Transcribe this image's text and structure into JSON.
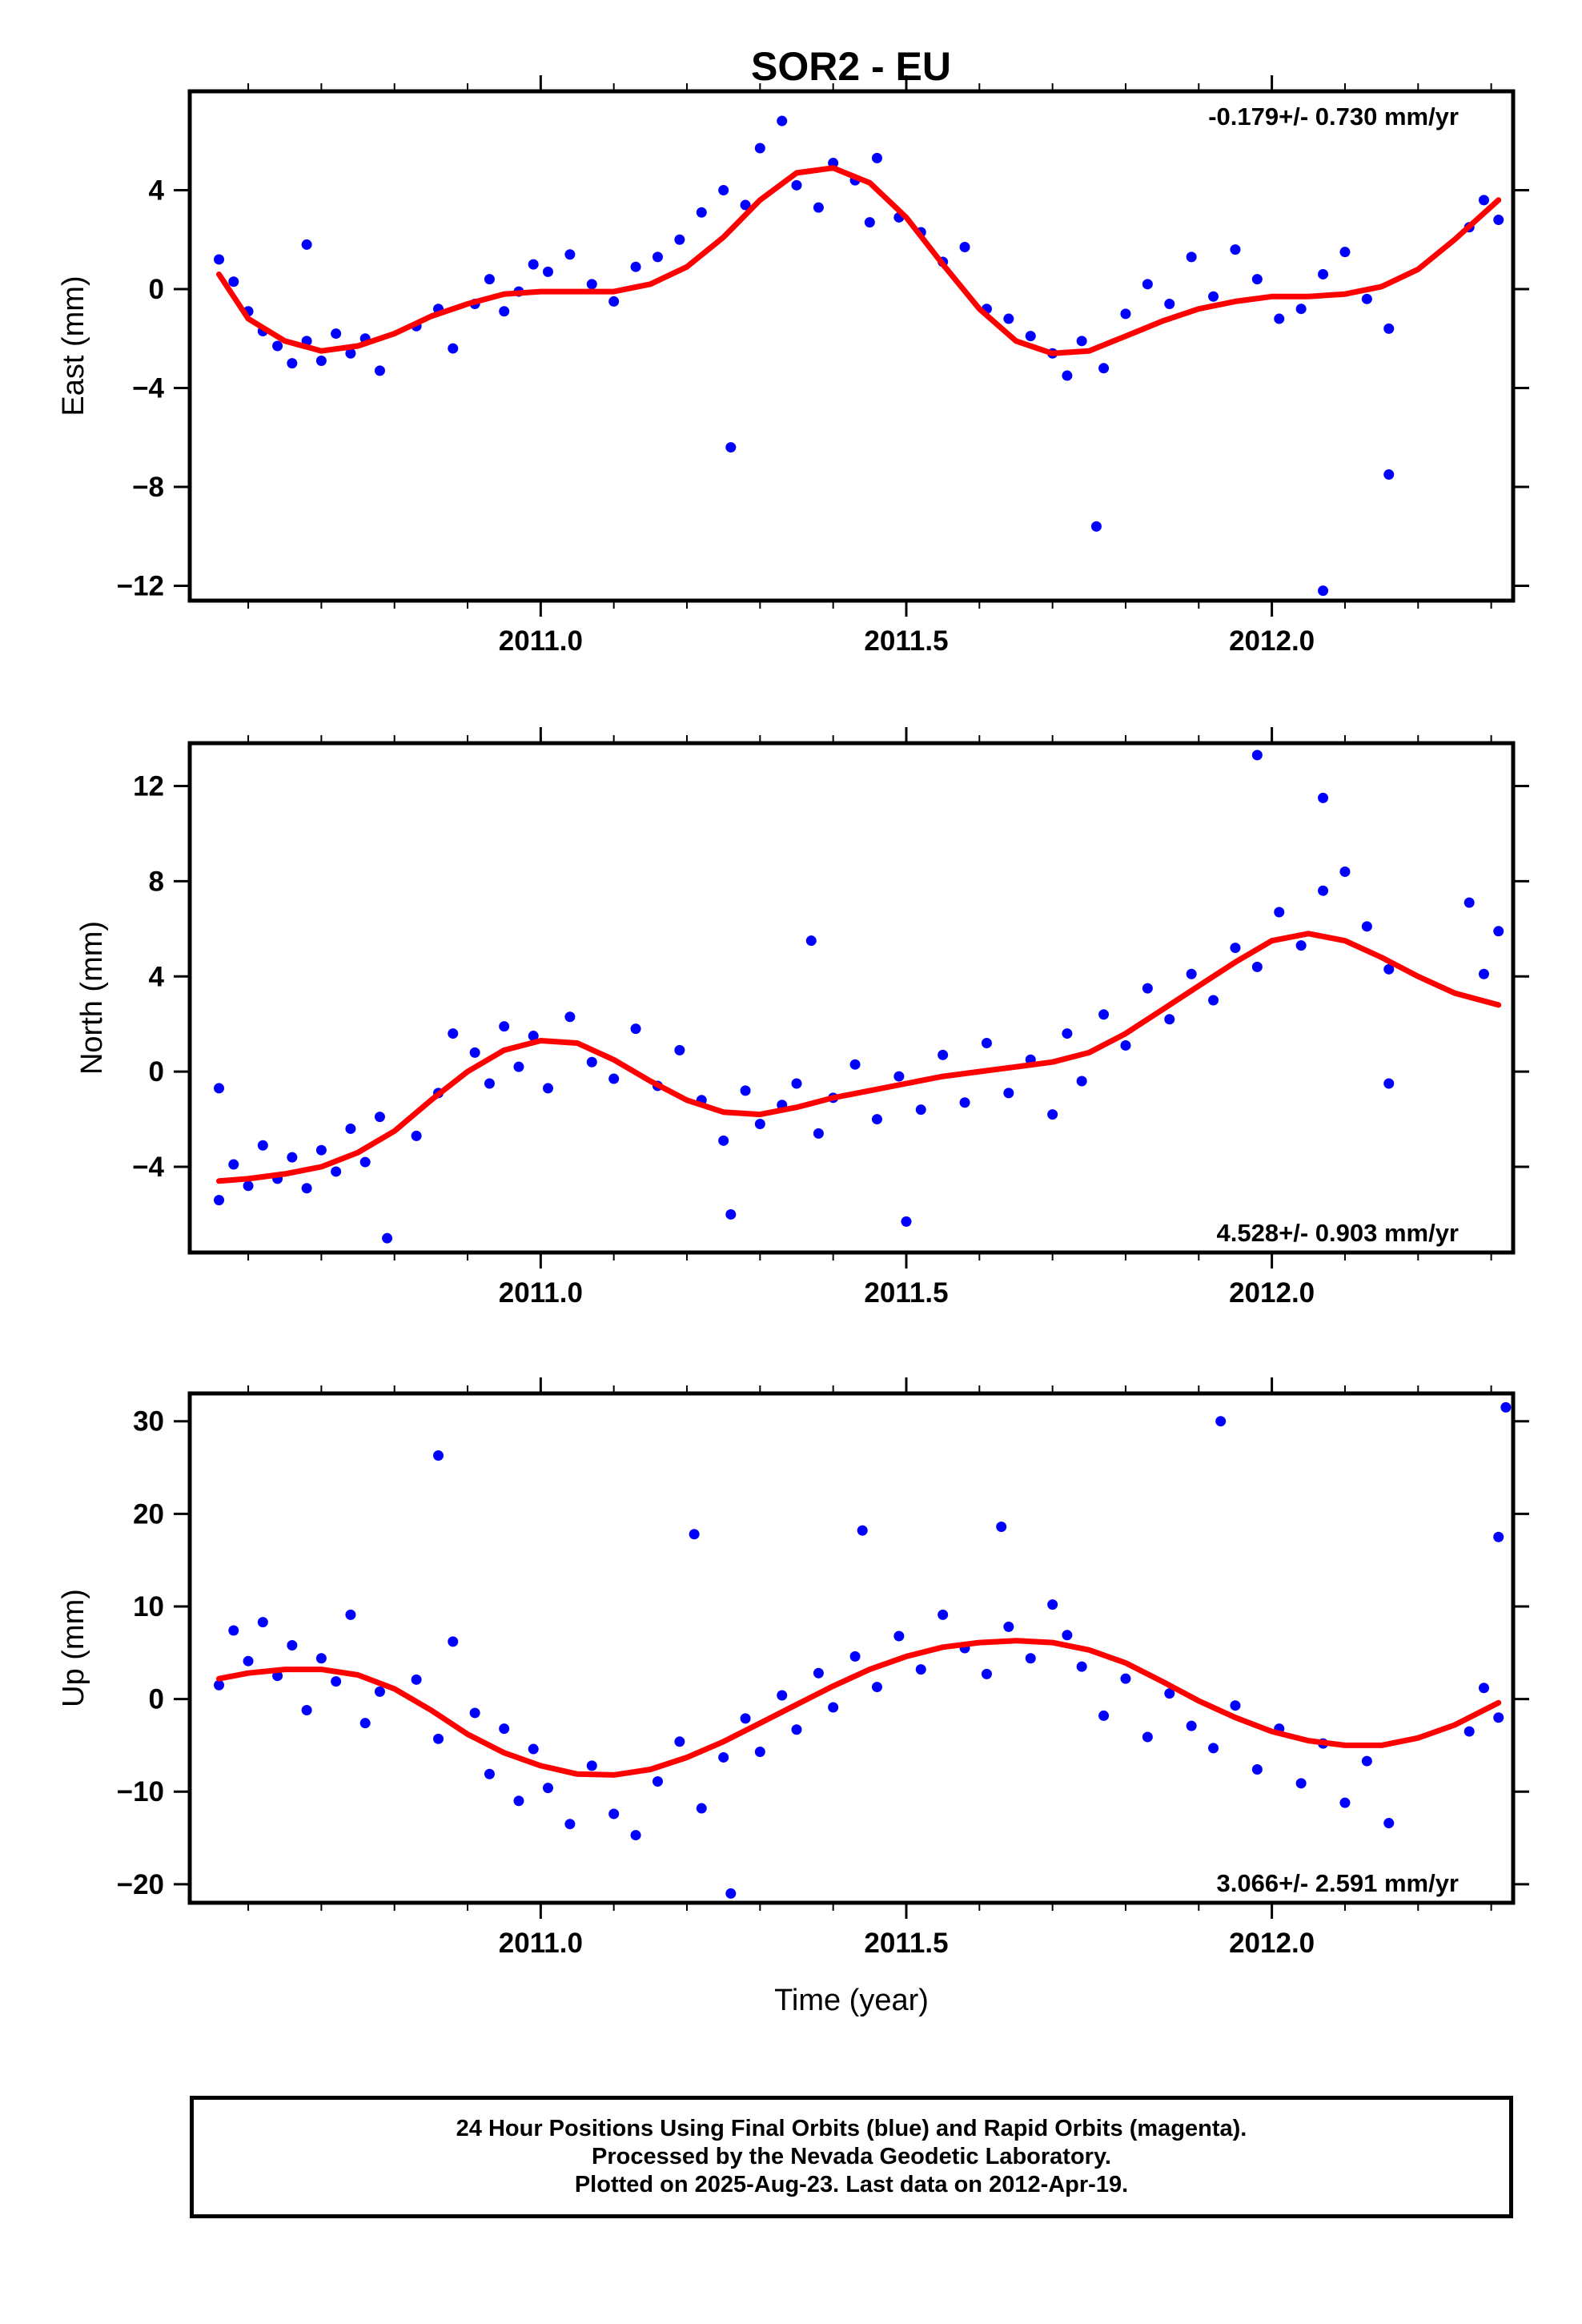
{
  "title": "SOR2 - EU",
  "colors": {
    "data_points": "#0000ff",
    "fit_line": "#ff0000",
    "frame": "#000000"
  },
  "footer": {
    "line1": "24 Hour Positions Using Final Orbits (blue) and Rapid Orbits (magenta).",
    "line2": "Processed by the Nevada Geodetic Laboratory.",
    "line3": "Plotted on 2025-Aug-23. Last data on 2012-Apr-19."
  },
  "chart_data": [
    {
      "type": "scatter",
      "ylabel": "East (mm)",
      "rate_label": "-0.179+/- 0.730 mm/yr",
      "rate_position": "top-right",
      "xlim": [
        2010.52,
        2012.33
      ],
      "ylim": [
        -12.6,
        8.0
      ],
      "yticks": [
        -12,
        -8,
        -4,
        0,
        4
      ],
      "ytick_labels": [
        "−12",
        "−8",
        "−4",
        "0",
        "4"
      ],
      "xticks": [
        2011.0,
        2011.5,
        2012.0
      ],
      "xtick_labels": [
        "2011.0",
        "2011.5",
        "2012.0"
      ],
      "series": [
        {
          "kind": "points",
          "x": [
            2010.56,
            2010.58,
            2010.6,
            2010.62,
            2010.64,
            2010.66,
            2010.68,
            2010.7,
            2010.72,
            2010.74,
            2010.76,
            2010.78,
            2010.83,
            2010.86,
            2010.88,
            2010.91,
            2010.93,
            2010.95,
            2010.97,
            2010.99,
            2011.01,
            2011.04,
            2011.07,
            2011.1,
            2011.13,
            2011.16,
            2011.19,
            2011.22,
            2011.25,
            2011.28,
            2011.3,
            2011.33,
            2011.35,
            2011.38,
            2011.4,
            2011.43,
            2011.46,
            2011.49,
            2011.52,
            2011.55,
            2011.58,
            2011.61,
            2011.64,
            2011.67,
            2011.7,
            2011.72,
            2011.74,
            2011.77,
            2011.8,
            2011.83,
            2011.86,
            2011.89,
            2011.92,
            2011.95,
            2011.98,
            2012.01,
            2012.04,
            2012.07,
            2012.1,
            2012.13,
            2012.16,
            2012.27,
            2012.29,
            2012.31,
            2011.26,
            2011.76,
            2012.07,
            2012.16,
            2010.68,
            2011.45
          ],
          "y": [
            1.2,
            0.3,
            -0.9,
            -1.7,
            -2.3,
            -3.0,
            -2.1,
            -2.9,
            -1.8,
            -2.6,
            -2.0,
            -3.3,
            -1.5,
            -0.8,
            -2.4,
            -0.6,
            0.4,
            -0.9,
            -0.1,
            1.0,
            0.7,
            1.4,
            0.2,
            -0.5,
            0.9,
            1.3,
            2.0,
            3.1,
            4.0,
            3.4,
            5.7,
            6.8,
            4.2,
            3.3,
            5.1,
            4.4,
            5.3,
            2.9,
            2.3,
            1.1,
            1.7,
            -0.8,
            -1.2,
            -1.9,
            -2.6,
            -3.5,
            -2.1,
            -3.2,
            -1.0,
            0.2,
            -0.6,
            1.3,
            -0.3,
            1.6,
            0.4,
            -1.2,
            -0.8,
            0.6,
            1.5,
            -0.4,
            -1.6,
            2.5,
            3.6,
            2.8,
            -6.4,
            -9.6,
            -12.2,
            -7.5,
            1.8,
            2.7
          ]
        },
        {
          "kind": "line",
          "x": [
            2010.56,
            2010.6,
            2010.65,
            2010.7,
            2010.75,
            2010.8,
            2010.85,
            2010.9,
            2010.95,
            2011.0,
            2011.05,
            2011.1,
            2011.15,
            2011.2,
            2011.25,
            2011.3,
            2011.35,
            2011.4,
            2011.45,
            2011.5,
            2011.55,
            2011.6,
            2011.65,
            2011.7,
            2011.75,
            2011.8,
            2011.85,
            2011.9,
            2011.95,
            2012.0,
            2012.05,
            2012.1,
            2012.15,
            2012.2,
            2012.25,
            2012.31
          ],
          "y": [
            0.6,
            -1.2,
            -2.1,
            -2.5,
            -2.3,
            -1.8,
            -1.1,
            -0.6,
            -0.2,
            -0.1,
            -0.1,
            -0.1,
            0.2,
            0.9,
            2.1,
            3.6,
            4.7,
            4.9,
            4.3,
            2.9,
            1.0,
            -0.8,
            -2.1,
            -2.6,
            -2.5,
            -1.9,
            -1.3,
            -0.8,
            -0.5,
            -0.3,
            -0.3,
            -0.2,
            0.1,
            0.8,
            2.0,
            3.6
          ]
        }
      ]
    },
    {
      "type": "scatter",
      "ylabel": "North (mm)",
      "rate_label": "4.528+/- 0.903 mm/yr",
      "rate_position": "bottom-right",
      "xlim": [
        2010.52,
        2012.33
      ],
      "ylim": [
        -7.6,
        13.8
      ],
      "yticks": [
        -4,
        0,
        4,
        8,
        12
      ],
      "ytick_labels": [
        "−4",
        "0",
        "4",
        "8",
        "12"
      ],
      "xticks": [
        2011.0,
        2011.5,
        2012.0
      ],
      "xtick_labels": [
        "2011.0",
        "2011.5",
        "2012.0"
      ],
      "series": [
        {
          "kind": "points",
          "x": [
            2010.56,
            2010.58,
            2010.6,
            2010.62,
            2010.64,
            2010.66,
            2010.68,
            2010.7,
            2010.72,
            2010.74,
            2010.76,
            2010.78,
            2010.83,
            2010.86,
            2010.88,
            2010.91,
            2010.93,
            2010.95,
            2010.97,
            2010.99,
            2011.01,
            2011.04,
            2011.07,
            2011.1,
            2011.13,
            2011.16,
            2011.19,
            2011.22,
            2011.25,
            2011.28,
            2011.3,
            2011.33,
            2011.35,
            2011.38,
            2011.4,
            2011.43,
            2011.46,
            2011.49,
            2011.52,
            2011.55,
            2011.58,
            2011.61,
            2011.64,
            2011.67,
            2011.7,
            2011.72,
            2011.74,
            2011.77,
            2011.8,
            2011.83,
            2011.86,
            2011.89,
            2011.92,
            2011.95,
            2011.98,
            2012.01,
            2012.04,
            2012.07,
            2012.1,
            2012.13,
            2012.16,
            2012.27,
            2012.29,
            2012.31,
            2010.56,
            2010.79,
            2011.26,
            2011.5,
            2011.98,
            2012.07,
            2011.37,
            2012.16
          ],
          "y": [
            -5.4,
            -3.9,
            -4.8,
            -3.1,
            -4.5,
            -3.6,
            -4.9,
            -3.3,
            -4.2,
            -2.4,
            -3.8,
            -1.9,
            -2.7,
            -0.9,
            1.6,
            0.8,
            -0.5,
            1.9,
            0.2,
            1.5,
            -0.7,
            2.3,
            0.4,
            -0.3,
            1.8,
            -0.6,
            0.9,
            -1.2,
            -2.9,
            -0.8,
            -2.2,
            -1.4,
            -0.5,
            -2.6,
            -1.1,
            0.3,
            -2.0,
            -0.2,
            -1.6,
            0.7,
            -1.3,
            1.2,
            -0.9,
            0.5,
            -1.8,
            1.6,
            -0.4,
            2.4,
            1.1,
            3.5,
            2.2,
            4.1,
            3.0,
            5.2,
            4.4,
            6.7,
            5.3,
            7.6,
            8.4,
            6.1,
            4.3,
            7.1,
            4.1,
            5.9,
            -0.7,
            -7.0,
            -6.0,
            -6.3,
            13.3,
            11.5,
            5.5,
            -0.5
          ]
        },
        {
          "kind": "line",
          "x": [
            2010.56,
            2010.6,
            2010.65,
            2010.7,
            2010.75,
            2010.8,
            2010.85,
            2010.9,
            2010.95,
            2011.0,
            2011.05,
            2011.1,
            2011.15,
            2011.2,
            2011.25,
            2011.3,
            2011.35,
            2011.4,
            2011.45,
            2011.5,
            2011.55,
            2011.6,
            2011.65,
            2011.7,
            2011.75,
            2011.8,
            2011.85,
            2011.9,
            2011.95,
            2012.0,
            2012.05,
            2012.1,
            2012.15,
            2012.2,
            2012.25,
            2012.31
          ],
          "y": [
            -4.6,
            -4.5,
            -4.3,
            -4.0,
            -3.4,
            -2.5,
            -1.2,
            0.0,
            0.9,
            1.3,
            1.2,
            0.5,
            -0.4,
            -1.2,
            -1.7,
            -1.8,
            -1.5,
            -1.1,
            -0.8,
            -0.5,
            -0.2,
            0.0,
            0.2,
            0.4,
            0.8,
            1.6,
            2.6,
            3.6,
            4.6,
            5.5,
            5.8,
            5.5,
            4.8,
            4.0,
            3.3,
            2.8
          ]
        }
      ]
    },
    {
      "type": "scatter",
      "ylabel": "Up (mm)",
      "xlabel": "Time (year)",
      "rate_label": "3.066+/- 2.591 mm/yr",
      "rate_position": "bottom-right",
      "xlim": [
        2010.52,
        2012.33
      ],
      "ylim": [
        -22.0,
        33.0
      ],
      "yticks": [
        -20,
        -10,
        0,
        10,
        20,
        30
      ],
      "ytick_labels": [
        "−20",
        "−10",
        "0",
        "10",
        "20",
        "30"
      ],
      "xticks": [
        2011.0,
        2011.5,
        2012.0
      ],
      "xtick_labels": [
        "2011.0",
        "2011.5",
        "2012.0"
      ],
      "series": [
        {
          "kind": "points",
          "x": [
            2010.56,
            2010.58,
            2010.6,
            2010.62,
            2010.64,
            2010.66,
            2010.68,
            2010.7,
            2010.72,
            2010.74,
            2010.76,
            2010.78,
            2010.83,
            2010.86,
            2010.88,
            2010.91,
            2010.93,
            2010.95,
            2010.97,
            2010.99,
            2011.01,
            2011.04,
            2011.07,
            2011.1,
            2011.13,
            2011.16,
            2011.19,
            2011.22,
            2011.25,
            2011.28,
            2011.3,
            2011.33,
            2011.35,
            2011.38,
            2011.4,
            2011.43,
            2011.46,
            2011.49,
            2011.52,
            2011.55,
            2011.58,
            2011.61,
            2011.64,
            2011.67,
            2011.7,
            2011.72,
            2011.74,
            2011.77,
            2011.8,
            2011.83,
            2011.86,
            2011.89,
            2011.92,
            2011.95,
            2011.98,
            2012.01,
            2012.04,
            2012.07,
            2012.1,
            2012.13,
            2012.16,
            2012.27,
            2012.29,
            2012.31,
            2010.86,
            2011.21,
            2011.26,
            2011.44,
            2011.63,
            2011.93,
            2012.32,
            2012.31
          ],
          "y": [
            1.5,
            7.4,
            4.1,
            8.3,
            2.5,
            5.8,
            -1.2,
            4.4,
            1.9,
            9.1,
            -2.6,
            0.8,
            2.1,
            -4.3,
            6.2,
            -1.5,
            -8.1,
            -3.2,
            -11.0,
            -5.4,
            -9.6,
            -13.5,
            -7.2,
            -12.4,
            -14.7,
            -8.9,
            -4.6,
            -11.8,
            -6.3,
            -2.1,
            -5.7,
            0.4,
            -3.3,
            2.8,
            -0.9,
            4.6,
            1.3,
            6.8,
            3.2,
            9.1,
            5.5,
            2.7,
            7.8,
            4.4,
            10.2,
            6.9,
            3.5,
            -1.8,
            2.2,
            -4.1,
            0.6,
            -2.9,
            -5.3,
            -0.7,
            -7.6,
            -3.2,
            -9.1,
            -4.8,
            -11.2,
            -6.7,
            -13.4,
            -3.5,
            1.2,
            -2.0,
            26.3,
            17.8,
            -21.0,
            18.2,
            18.6,
            30.0,
            31.5,
            17.5
          ]
        },
        {
          "kind": "line",
          "x": [
            2010.56,
            2010.6,
            2010.65,
            2010.7,
            2010.75,
            2010.8,
            2010.85,
            2010.9,
            2010.95,
            2011.0,
            2011.05,
            2011.1,
            2011.15,
            2011.2,
            2011.25,
            2011.3,
            2011.35,
            2011.4,
            2011.45,
            2011.5,
            2011.55,
            2011.6,
            2011.65,
            2011.7,
            2011.75,
            2011.8,
            2011.85,
            2011.9,
            2011.95,
            2012.0,
            2012.05,
            2012.1,
            2012.15,
            2012.2,
            2012.25,
            2012.31
          ],
          "y": [
            2.2,
            2.8,
            3.2,
            3.2,
            2.6,
            1.1,
            -1.2,
            -3.8,
            -5.8,
            -7.2,
            -8.1,
            -8.2,
            -7.6,
            -6.3,
            -4.6,
            -2.6,
            -0.6,
            1.4,
            3.2,
            4.6,
            5.6,
            6.1,
            6.3,
            6.1,
            5.3,
            3.9,
            1.9,
            -0.2,
            -2.0,
            -3.5,
            -4.5,
            -5.0,
            -5.0,
            -4.2,
            -2.8,
            -0.4
          ]
        }
      ]
    }
  ]
}
